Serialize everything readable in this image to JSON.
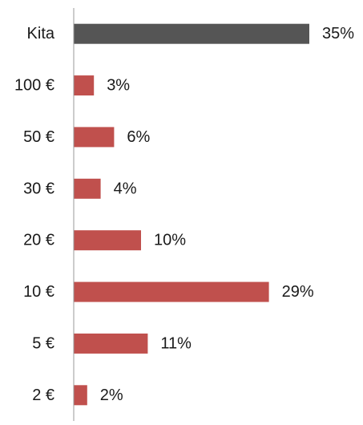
{
  "chart_data": {
    "type": "bar",
    "orientation": "horizontal",
    "categories": [
      "Kita",
      "100 €",
      "50 €",
      "30 €",
      "20 €",
      "10 €",
      "5 €",
      "2 €"
    ],
    "values": [
      35,
      3,
      6,
      4,
      10,
      29,
      11,
      2
    ],
    "value_labels": [
      "35%",
      "3%",
      "6%",
      "4%",
      "10%",
      "29%",
      "11%",
      "2%"
    ],
    "bar_colors": [
      "#555555",
      "#c0504d",
      "#c0504d",
      "#c0504d",
      "#c0504d",
      "#c0504d",
      "#c0504d",
      "#c0504d"
    ],
    "xlim": [
      0,
      35
    ],
    "grid": false,
    "legend": "none",
    "axis_color": "#999999"
  }
}
